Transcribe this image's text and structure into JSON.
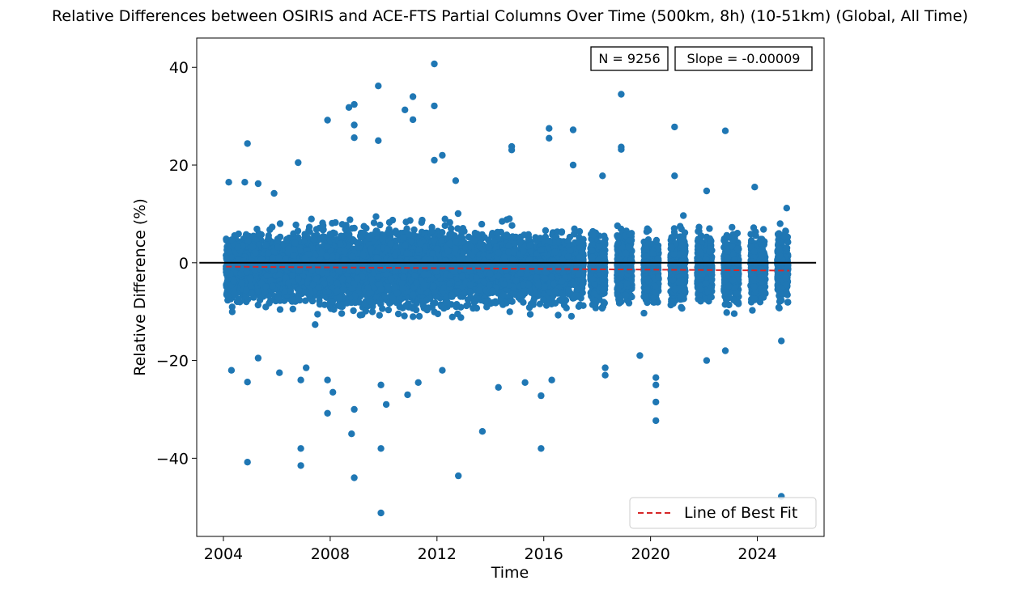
{
  "chart_data": {
    "type": "scatter",
    "title": "Relative Differences between OSIRIS and ACE-FTS Partial Columns Over Time (500km, 8h) (10-51km) (Global, All Time)",
    "xlabel": "Time",
    "ylabel": "Relative Difference (%)",
    "xlim": [
      2003.0,
      2026.5
    ],
    "ylim": [
      -56,
      46
    ],
    "xticks": [
      "2004",
      "2008",
      "2012",
      "2016",
      "2020",
      "2024"
    ],
    "xtick_values": [
      2004,
      2008,
      2012,
      2016,
      2020,
      2024
    ],
    "yticks": [
      "40",
      "20",
      "0",
      "−20",
      "−40"
    ],
    "ytick_values": [
      40,
      20,
      0,
      -20,
      -40
    ],
    "annotations": {
      "n": "N = 9256",
      "slope": "Slope = -0.00009"
    },
    "legend": {
      "label": "Line of Best Fit",
      "placement": "lower right"
    },
    "zero_line": {
      "y": 0,
      "x_start": 2003.1,
      "x_end": 2026.2
    },
    "best_fit": {
      "x_start": 2004.1,
      "y_start": -0.8,
      "x_end": 2025.2,
      "y_end": -1.6
    },
    "point_count_shown": 9256,
    "outliers": [
      {
        "x": 2004.2,
        "y": 16.5
      },
      {
        "x": 2004.3,
        "y": -22
      },
      {
        "x": 2004.8,
        "y": 16.5
      },
      {
        "x": 2004.9,
        "y": 24.4
      },
      {
        "x": 2004.9,
        "y": -24.4
      },
      {
        "x": 2004.9,
        "y": -40.8
      },
      {
        "x": 2005.3,
        "y": -19.5
      },
      {
        "x": 2005.3,
        "y": 16.2
      },
      {
        "x": 2005.9,
        "y": 14.2
      },
      {
        "x": 2006.1,
        "y": -22.5
      },
      {
        "x": 2006.8,
        "y": 20.5
      },
      {
        "x": 2006.9,
        "y": -38
      },
      {
        "x": 2006.9,
        "y": -41.5
      },
      {
        "x": 2006.9,
        "y": -24
      },
      {
        "x": 2007.1,
        "y": -21.5
      },
      {
        "x": 2007.9,
        "y": 29.2
      },
      {
        "x": 2007.9,
        "y": -24
      },
      {
        "x": 2007.9,
        "y": -30.8
      },
      {
        "x": 2008.1,
        "y": -26.5
      },
      {
        "x": 2008.7,
        "y": 31.8
      },
      {
        "x": 2008.8,
        "y": -35
      },
      {
        "x": 2008.9,
        "y": 32.4
      },
      {
        "x": 2008.9,
        "y": 28.2
      },
      {
        "x": 2008.9,
        "y": 25.6
      },
      {
        "x": 2008.9,
        "y": -44
      },
      {
        "x": 2008.9,
        "y": -30
      },
      {
        "x": 2009.8,
        "y": 36.2
      },
      {
        "x": 2009.8,
        "y": 25
      },
      {
        "x": 2009.9,
        "y": -38
      },
      {
        "x": 2009.9,
        "y": -51.2
      },
      {
        "x": 2009.9,
        "y": -25
      },
      {
        "x": 2010.1,
        "y": -29
      },
      {
        "x": 2010.8,
        "y": 31.3
      },
      {
        "x": 2010.9,
        "y": -27
      },
      {
        "x": 2011.1,
        "y": 34
      },
      {
        "x": 2011.1,
        "y": 29.3
      },
      {
        "x": 2011.3,
        "y": -24.5
      },
      {
        "x": 2011.9,
        "y": 40.7
      },
      {
        "x": 2011.9,
        "y": 32.1
      },
      {
        "x": 2011.9,
        "y": 21
      },
      {
        "x": 2012.2,
        "y": 22
      },
      {
        "x": 2012.2,
        "y": -22
      },
      {
        "x": 2012.7,
        "y": 16.8
      },
      {
        "x": 2012.8,
        "y": -43.6
      },
      {
        "x": 2013.7,
        "y": -34.5
      },
      {
        "x": 2014.3,
        "y": -25.5
      },
      {
        "x": 2014.8,
        "y": 23.8
      },
      {
        "x": 2014.8,
        "y": 23.1
      },
      {
        "x": 2015.3,
        "y": -24.5
      },
      {
        "x": 2015.9,
        "y": -27.2
      },
      {
        "x": 2015.9,
        "y": -38
      },
      {
        "x": 2016.2,
        "y": 27.5
      },
      {
        "x": 2016.2,
        "y": 25.5
      },
      {
        "x": 2016.3,
        "y": -24
      },
      {
        "x": 2017.1,
        "y": 27.2
      },
      {
        "x": 2017.1,
        "y": 20
      },
      {
        "x": 2018.2,
        "y": 17.8
      },
      {
        "x": 2018.3,
        "y": -21.5
      },
      {
        "x": 2018.3,
        "y": -23
      },
      {
        "x": 2018.9,
        "y": 34.5
      },
      {
        "x": 2018.9,
        "y": 23.7
      },
      {
        "x": 2018.9,
        "y": 23.2
      },
      {
        "x": 2019.6,
        "y": -19
      },
      {
        "x": 2020.2,
        "y": -23.5
      },
      {
        "x": 2020.2,
        "y": -25
      },
      {
        "x": 2020.2,
        "y": -28.5
      },
      {
        "x": 2020.2,
        "y": -32.3
      },
      {
        "x": 2020.9,
        "y": 27.8
      },
      {
        "x": 2020.9,
        "y": 17.8
      },
      {
        "x": 2022.1,
        "y": -20
      },
      {
        "x": 2022.1,
        "y": 14.7
      },
      {
        "x": 2022.8,
        "y": 27
      },
      {
        "x": 2022.8,
        "y": -18
      },
      {
        "x": 2023.9,
        "y": 15.5
      },
      {
        "x": 2024.9,
        "y": -47.8
      },
      {
        "x": 2024.9,
        "y": -16
      },
      {
        "x": 2025.1,
        "y": 11.2
      }
    ],
    "colors": {
      "points": "#1f77b4",
      "best_fit": "#d62728",
      "zero_line": "#000000"
    }
  }
}
